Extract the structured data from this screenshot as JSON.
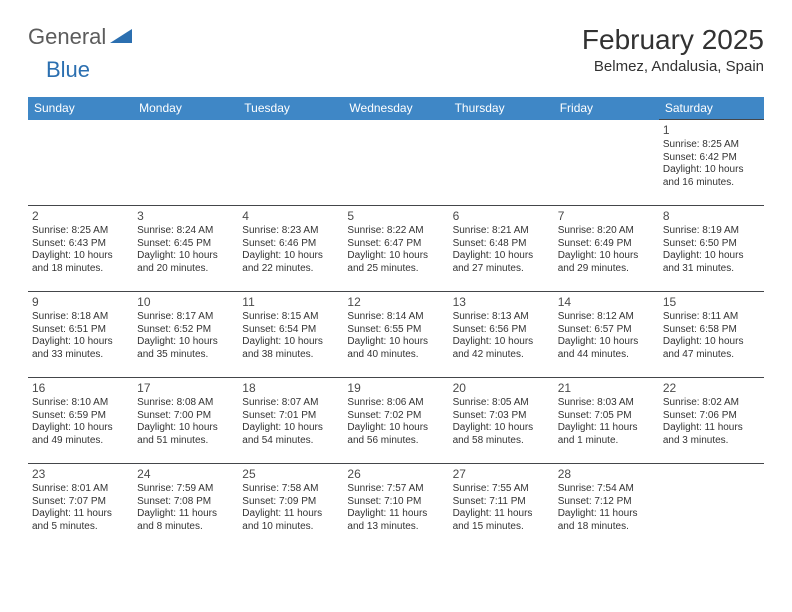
{
  "logo": {
    "part1": "General",
    "part2": "Blue"
  },
  "title": "February 2025",
  "location": "Belmez, Andalusia, Spain",
  "colors": {
    "header_bg": "#3f87c6",
    "header_text": "#ffffff",
    "rule": "#44464a",
    "logo_gray": "#5c5c5c",
    "logo_blue": "#2b6fb0",
    "body_text": "#333333",
    "page_bg": "#ffffff"
  },
  "columns": [
    "Sunday",
    "Monday",
    "Tuesday",
    "Wednesday",
    "Thursday",
    "Friday",
    "Saturday"
  ],
  "weeks": [
    [
      null,
      null,
      null,
      null,
      null,
      null,
      {
        "n": "1",
        "sunrise": "Sunrise: 8:25 AM",
        "sunset": "Sunset: 6:42 PM",
        "daylight": "Daylight: 10 hours and 16 minutes."
      }
    ],
    [
      {
        "n": "2",
        "sunrise": "Sunrise: 8:25 AM",
        "sunset": "Sunset: 6:43 PM",
        "daylight": "Daylight: 10 hours and 18 minutes."
      },
      {
        "n": "3",
        "sunrise": "Sunrise: 8:24 AM",
        "sunset": "Sunset: 6:45 PM",
        "daylight": "Daylight: 10 hours and 20 minutes."
      },
      {
        "n": "4",
        "sunrise": "Sunrise: 8:23 AM",
        "sunset": "Sunset: 6:46 PM",
        "daylight": "Daylight: 10 hours and 22 minutes."
      },
      {
        "n": "5",
        "sunrise": "Sunrise: 8:22 AM",
        "sunset": "Sunset: 6:47 PM",
        "daylight": "Daylight: 10 hours and 25 minutes."
      },
      {
        "n": "6",
        "sunrise": "Sunrise: 8:21 AM",
        "sunset": "Sunset: 6:48 PM",
        "daylight": "Daylight: 10 hours and 27 minutes."
      },
      {
        "n": "7",
        "sunrise": "Sunrise: 8:20 AM",
        "sunset": "Sunset: 6:49 PM",
        "daylight": "Daylight: 10 hours and 29 minutes."
      },
      {
        "n": "8",
        "sunrise": "Sunrise: 8:19 AM",
        "sunset": "Sunset: 6:50 PM",
        "daylight": "Daylight: 10 hours and 31 minutes."
      }
    ],
    [
      {
        "n": "9",
        "sunrise": "Sunrise: 8:18 AM",
        "sunset": "Sunset: 6:51 PM",
        "daylight": "Daylight: 10 hours and 33 minutes."
      },
      {
        "n": "10",
        "sunrise": "Sunrise: 8:17 AM",
        "sunset": "Sunset: 6:52 PM",
        "daylight": "Daylight: 10 hours and 35 minutes."
      },
      {
        "n": "11",
        "sunrise": "Sunrise: 8:15 AM",
        "sunset": "Sunset: 6:54 PM",
        "daylight": "Daylight: 10 hours and 38 minutes."
      },
      {
        "n": "12",
        "sunrise": "Sunrise: 8:14 AM",
        "sunset": "Sunset: 6:55 PM",
        "daylight": "Daylight: 10 hours and 40 minutes."
      },
      {
        "n": "13",
        "sunrise": "Sunrise: 8:13 AM",
        "sunset": "Sunset: 6:56 PM",
        "daylight": "Daylight: 10 hours and 42 minutes."
      },
      {
        "n": "14",
        "sunrise": "Sunrise: 8:12 AM",
        "sunset": "Sunset: 6:57 PM",
        "daylight": "Daylight: 10 hours and 44 minutes."
      },
      {
        "n": "15",
        "sunrise": "Sunrise: 8:11 AM",
        "sunset": "Sunset: 6:58 PM",
        "daylight": "Daylight: 10 hours and 47 minutes."
      }
    ],
    [
      {
        "n": "16",
        "sunrise": "Sunrise: 8:10 AM",
        "sunset": "Sunset: 6:59 PM",
        "daylight": "Daylight: 10 hours and 49 minutes."
      },
      {
        "n": "17",
        "sunrise": "Sunrise: 8:08 AM",
        "sunset": "Sunset: 7:00 PM",
        "daylight": "Daylight: 10 hours and 51 minutes."
      },
      {
        "n": "18",
        "sunrise": "Sunrise: 8:07 AM",
        "sunset": "Sunset: 7:01 PM",
        "daylight": "Daylight: 10 hours and 54 minutes."
      },
      {
        "n": "19",
        "sunrise": "Sunrise: 8:06 AM",
        "sunset": "Sunset: 7:02 PM",
        "daylight": "Daylight: 10 hours and 56 minutes."
      },
      {
        "n": "20",
        "sunrise": "Sunrise: 8:05 AM",
        "sunset": "Sunset: 7:03 PM",
        "daylight": "Daylight: 10 hours and 58 minutes."
      },
      {
        "n": "21",
        "sunrise": "Sunrise: 8:03 AM",
        "sunset": "Sunset: 7:05 PM",
        "daylight": "Daylight: 11 hours and 1 minute."
      },
      {
        "n": "22",
        "sunrise": "Sunrise: 8:02 AM",
        "sunset": "Sunset: 7:06 PM",
        "daylight": "Daylight: 11 hours and 3 minutes."
      }
    ],
    [
      {
        "n": "23",
        "sunrise": "Sunrise: 8:01 AM",
        "sunset": "Sunset: 7:07 PM",
        "daylight": "Daylight: 11 hours and 5 minutes."
      },
      {
        "n": "24",
        "sunrise": "Sunrise: 7:59 AM",
        "sunset": "Sunset: 7:08 PM",
        "daylight": "Daylight: 11 hours and 8 minutes."
      },
      {
        "n": "25",
        "sunrise": "Sunrise: 7:58 AM",
        "sunset": "Sunset: 7:09 PM",
        "daylight": "Daylight: 11 hours and 10 minutes."
      },
      {
        "n": "26",
        "sunrise": "Sunrise: 7:57 AM",
        "sunset": "Sunset: 7:10 PM",
        "daylight": "Daylight: 11 hours and 13 minutes."
      },
      {
        "n": "27",
        "sunrise": "Sunrise: 7:55 AM",
        "sunset": "Sunset: 7:11 PM",
        "daylight": "Daylight: 11 hours and 15 minutes."
      },
      {
        "n": "28",
        "sunrise": "Sunrise: 7:54 AM",
        "sunset": "Sunset: 7:12 PM",
        "daylight": "Daylight: 11 hours and 18 minutes."
      },
      null
    ]
  ]
}
